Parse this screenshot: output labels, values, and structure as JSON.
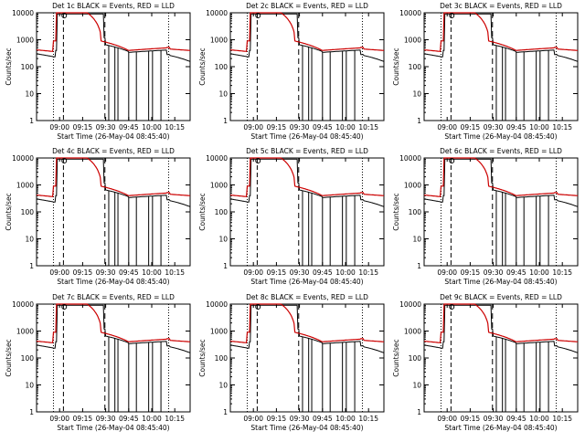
{
  "colors": {
    "events": "#000000",
    "lld": "#cc0000",
    "background": "#ffffff"
  },
  "chart_data": [
    {
      "type": "line",
      "title": "Det 1c BLACK = Events, RED = LLD",
      "xlabel": "Start Time (26-May-04 08:45:40)",
      "ylabel": "Counts/sec",
      "yscale": "log",
      "ylim": [
        1,
        10000
      ],
      "xticks": [
        "09:00",
        "09:15",
        "09:30",
        "09:45",
        "10:00",
        "10:15"
      ],
      "yticks": [
        "1",
        "10",
        "100",
        "1000",
        "10000"
      ]
    },
    {
      "type": "line",
      "title": "Det 2c BLACK = Events, RED = LLD",
      "xlabel": "Start Time (26-May-04 08:45:40)",
      "ylabel": "Counts/sec",
      "yscale": "log",
      "ylim": [
        1,
        10000
      ],
      "xticks": [
        "09:00",
        "09:15",
        "09:30",
        "09:45",
        "10:00",
        "10:15"
      ],
      "yticks": [
        "1",
        "10",
        "100",
        "1000",
        "10000"
      ]
    },
    {
      "type": "line",
      "title": "Det 3c BLACK = Events, RED = LLD",
      "xlabel": "Start Time (26-May-04 08:45:40)",
      "ylabel": "Counts/sec",
      "yscale": "log",
      "ylim": [
        1,
        10000
      ],
      "xticks": [
        "09:00",
        "09:15",
        "09:30",
        "09:45",
        "10:00",
        "10:15"
      ],
      "yticks": [
        "1",
        "10",
        "100",
        "1000",
        "10000"
      ]
    },
    {
      "type": "line",
      "title": "Det 4c BLACK = Events, RED = LLD",
      "xlabel": "Start Time (26-May-04 08:45:40)",
      "ylabel": "Counts/sec",
      "yscale": "log",
      "ylim": [
        1,
        10000
      ],
      "xticks": [
        "09:00",
        "09:15",
        "09:30",
        "09:45",
        "10:00",
        "10:15"
      ],
      "yticks": [
        "1",
        "10",
        "100",
        "1000",
        "10000"
      ]
    },
    {
      "type": "line",
      "title": "Det 5c BLACK = Events, RED = LLD",
      "xlabel": "Start Time (26-May-04 08:45:40)",
      "ylabel": "Counts/sec",
      "yscale": "log",
      "ylim": [
        1,
        10000
      ],
      "xticks": [
        "09:00",
        "09:15",
        "09:30",
        "09:45",
        "10:00",
        "10:15"
      ],
      "yticks": [
        "1",
        "10",
        "100",
        "1000",
        "10000"
      ]
    },
    {
      "type": "line",
      "title": "Det 6c BLACK = Events, RED = LLD",
      "xlabel": "Start Time (26-May-04 08:45:40)",
      "ylabel": "Counts/sec",
      "yscale": "log",
      "ylim": [
        1,
        10000
      ],
      "xticks": [
        "09:00",
        "09:15",
        "09:30",
        "09:45",
        "10:00",
        "10:15"
      ],
      "yticks": [
        "1",
        "10",
        "100",
        "1000",
        "10000"
      ]
    },
    {
      "type": "line",
      "title": "Det 7c BLACK = Events, RED = LLD",
      "xlabel": "Start Time (26-May-04 08:45:40)",
      "ylabel": "Counts/sec",
      "yscale": "log",
      "ylim": [
        1,
        10000
      ],
      "xticks": [
        "09:00",
        "09:15",
        "09:30",
        "09:45",
        "10:00",
        "10:15"
      ],
      "yticks": [
        "1",
        "10",
        "100",
        "1000",
        "10000"
      ]
    },
    {
      "type": "line",
      "title": "Det 8c BLACK = Events, RED = LLD",
      "xlabel": "Start Time (26-May-04 08:45:40)",
      "ylabel": "Counts/sec",
      "yscale": "log",
      "ylim": [
        1,
        10000
      ],
      "xticks": [
        "09:00",
        "09:15",
        "09:30",
        "09:45",
        "10:00",
        "10:15"
      ],
      "yticks": [
        "1",
        "10",
        "100",
        "1000",
        "10000"
      ]
    },
    {
      "type": "line",
      "title": "Det 9c BLACK = Events, RED = LLD",
      "xlabel": "Start Time (26-May-04 08:45:40)",
      "ylabel": "Counts/sec",
      "yscale": "log",
      "ylim": [
        1,
        10000
      ],
      "xticks": [
        "09:00",
        "09:15",
        "09:30",
        "09:45",
        "10:00",
        "10:15"
      ],
      "yticks": [
        "1",
        "10",
        "100",
        "1000",
        "10000"
      ]
    }
  ]
}
